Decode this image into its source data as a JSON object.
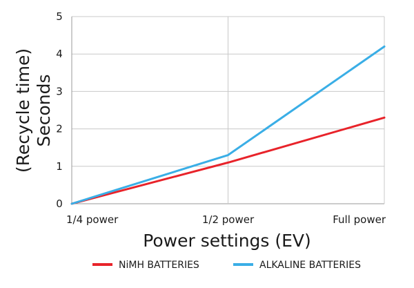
{
  "chart_data": {
    "type": "line",
    "title": "",
    "xlabel": "Power settings (EV)",
    "ylabel_lines": [
      "(Recycle time)",
      "Seconds"
    ],
    "categories": [
      "1/4 power",
      "1/2 power",
      "Full power"
    ],
    "ylim": [
      0,
      5
    ],
    "yticks": [
      "0",
      "1",
      "2",
      "3",
      "4",
      "5"
    ],
    "grid": true,
    "legend_position": "bottom",
    "series": [
      {
        "name": "NiMH BATTERIES",
        "color": "#e8232a",
        "values": [
          0,
          1.1,
          2.3
        ]
      },
      {
        "name": "ALKALINE BATTERIES",
        "color": "#3aaee6",
        "values": [
          0,
          1.3,
          4.2
        ]
      }
    ]
  }
}
